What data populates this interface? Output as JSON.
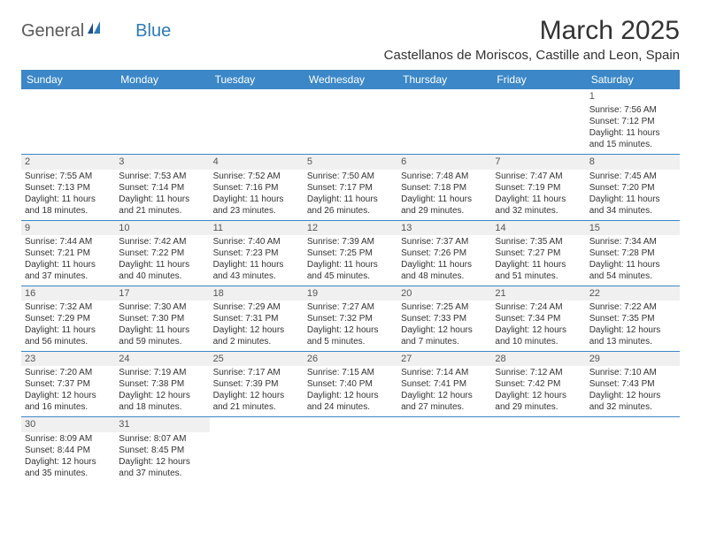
{
  "logo": {
    "general": "General",
    "blue": "Blue"
  },
  "title": "March 2025",
  "location": "Castellanos de Moriscos, Castille and Leon, Spain",
  "header_bg": "#3b87c8",
  "weekdays": [
    "Sunday",
    "Monday",
    "Tuesday",
    "Wednesday",
    "Thursday",
    "Friday",
    "Saturday"
  ],
  "labels": {
    "sunrise": "Sunrise:",
    "sunset": "Sunset:",
    "daylight": "Daylight:"
  },
  "weeks": [
    [
      null,
      null,
      null,
      null,
      null,
      null,
      {
        "n": "1",
        "sr": "7:56 AM",
        "ss": "7:12 PM",
        "dl1": "11 hours",
        "dl2": "and 15 minutes."
      }
    ],
    [
      {
        "n": "2",
        "sr": "7:55 AM",
        "ss": "7:13 PM",
        "dl1": "11 hours",
        "dl2": "and 18 minutes."
      },
      {
        "n": "3",
        "sr": "7:53 AM",
        "ss": "7:14 PM",
        "dl1": "11 hours",
        "dl2": "and 21 minutes."
      },
      {
        "n": "4",
        "sr": "7:52 AM",
        "ss": "7:16 PM",
        "dl1": "11 hours",
        "dl2": "and 23 minutes."
      },
      {
        "n": "5",
        "sr": "7:50 AM",
        "ss": "7:17 PM",
        "dl1": "11 hours",
        "dl2": "and 26 minutes."
      },
      {
        "n": "6",
        "sr": "7:48 AM",
        "ss": "7:18 PM",
        "dl1": "11 hours",
        "dl2": "and 29 minutes."
      },
      {
        "n": "7",
        "sr": "7:47 AM",
        "ss": "7:19 PM",
        "dl1": "11 hours",
        "dl2": "and 32 minutes."
      },
      {
        "n": "8",
        "sr": "7:45 AM",
        "ss": "7:20 PM",
        "dl1": "11 hours",
        "dl2": "and 34 minutes."
      }
    ],
    [
      {
        "n": "9",
        "sr": "7:44 AM",
        "ss": "7:21 PM",
        "dl1": "11 hours",
        "dl2": "and 37 minutes."
      },
      {
        "n": "10",
        "sr": "7:42 AM",
        "ss": "7:22 PM",
        "dl1": "11 hours",
        "dl2": "and 40 minutes."
      },
      {
        "n": "11",
        "sr": "7:40 AM",
        "ss": "7:23 PM",
        "dl1": "11 hours",
        "dl2": "and 43 minutes."
      },
      {
        "n": "12",
        "sr": "7:39 AM",
        "ss": "7:25 PM",
        "dl1": "11 hours",
        "dl2": "and 45 minutes."
      },
      {
        "n": "13",
        "sr": "7:37 AM",
        "ss": "7:26 PM",
        "dl1": "11 hours",
        "dl2": "and 48 minutes."
      },
      {
        "n": "14",
        "sr": "7:35 AM",
        "ss": "7:27 PM",
        "dl1": "11 hours",
        "dl2": "and 51 minutes."
      },
      {
        "n": "15",
        "sr": "7:34 AM",
        "ss": "7:28 PM",
        "dl1": "11 hours",
        "dl2": "and 54 minutes."
      }
    ],
    [
      {
        "n": "16",
        "sr": "7:32 AM",
        "ss": "7:29 PM",
        "dl1": "11 hours",
        "dl2": "and 56 minutes."
      },
      {
        "n": "17",
        "sr": "7:30 AM",
        "ss": "7:30 PM",
        "dl1": "11 hours",
        "dl2": "and 59 minutes."
      },
      {
        "n": "18",
        "sr": "7:29 AM",
        "ss": "7:31 PM",
        "dl1": "12 hours",
        "dl2": "and 2 minutes."
      },
      {
        "n": "19",
        "sr": "7:27 AM",
        "ss": "7:32 PM",
        "dl1": "12 hours",
        "dl2": "and 5 minutes."
      },
      {
        "n": "20",
        "sr": "7:25 AM",
        "ss": "7:33 PM",
        "dl1": "12 hours",
        "dl2": "and 7 minutes."
      },
      {
        "n": "21",
        "sr": "7:24 AM",
        "ss": "7:34 PM",
        "dl1": "12 hours",
        "dl2": "and 10 minutes."
      },
      {
        "n": "22",
        "sr": "7:22 AM",
        "ss": "7:35 PM",
        "dl1": "12 hours",
        "dl2": "and 13 minutes."
      }
    ],
    [
      {
        "n": "23",
        "sr": "7:20 AM",
        "ss": "7:37 PM",
        "dl1": "12 hours",
        "dl2": "and 16 minutes."
      },
      {
        "n": "24",
        "sr": "7:19 AM",
        "ss": "7:38 PM",
        "dl1": "12 hours",
        "dl2": "and 18 minutes."
      },
      {
        "n": "25",
        "sr": "7:17 AM",
        "ss": "7:39 PM",
        "dl1": "12 hours",
        "dl2": "and 21 minutes."
      },
      {
        "n": "26",
        "sr": "7:15 AM",
        "ss": "7:40 PM",
        "dl1": "12 hours",
        "dl2": "and 24 minutes."
      },
      {
        "n": "27",
        "sr": "7:14 AM",
        "ss": "7:41 PM",
        "dl1": "12 hours",
        "dl2": "and 27 minutes."
      },
      {
        "n": "28",
        "sr": "7:12 AM",
        "ss": "7:42 PM",
        "dl1": "12 hours",
        "dl2": "and 29 minutes."
      },
      {
        "n": "29",
        "sr": "7:10 AM",
        "ss": "7:43 PM",
        "dl1": "12 hours",
        "dl2": "and 32 minutes."
      }
    ],
    [
      {
        "n": "30",
        "sr": "8:09 AM",
        "ss": "8:44 PM",
        "dl1": "12 hours",
        "dl2": "and 35 minutes."
      },
      {
        "n": "31",
        "sr": "8:07 AM",
        "ss": "8:45 PM",
        "dl1": "12 hours",
        "dl2": "and 37 minutes."
      },
      null,
      null,
      null,
      null,
      null
    ]
  ]
}
